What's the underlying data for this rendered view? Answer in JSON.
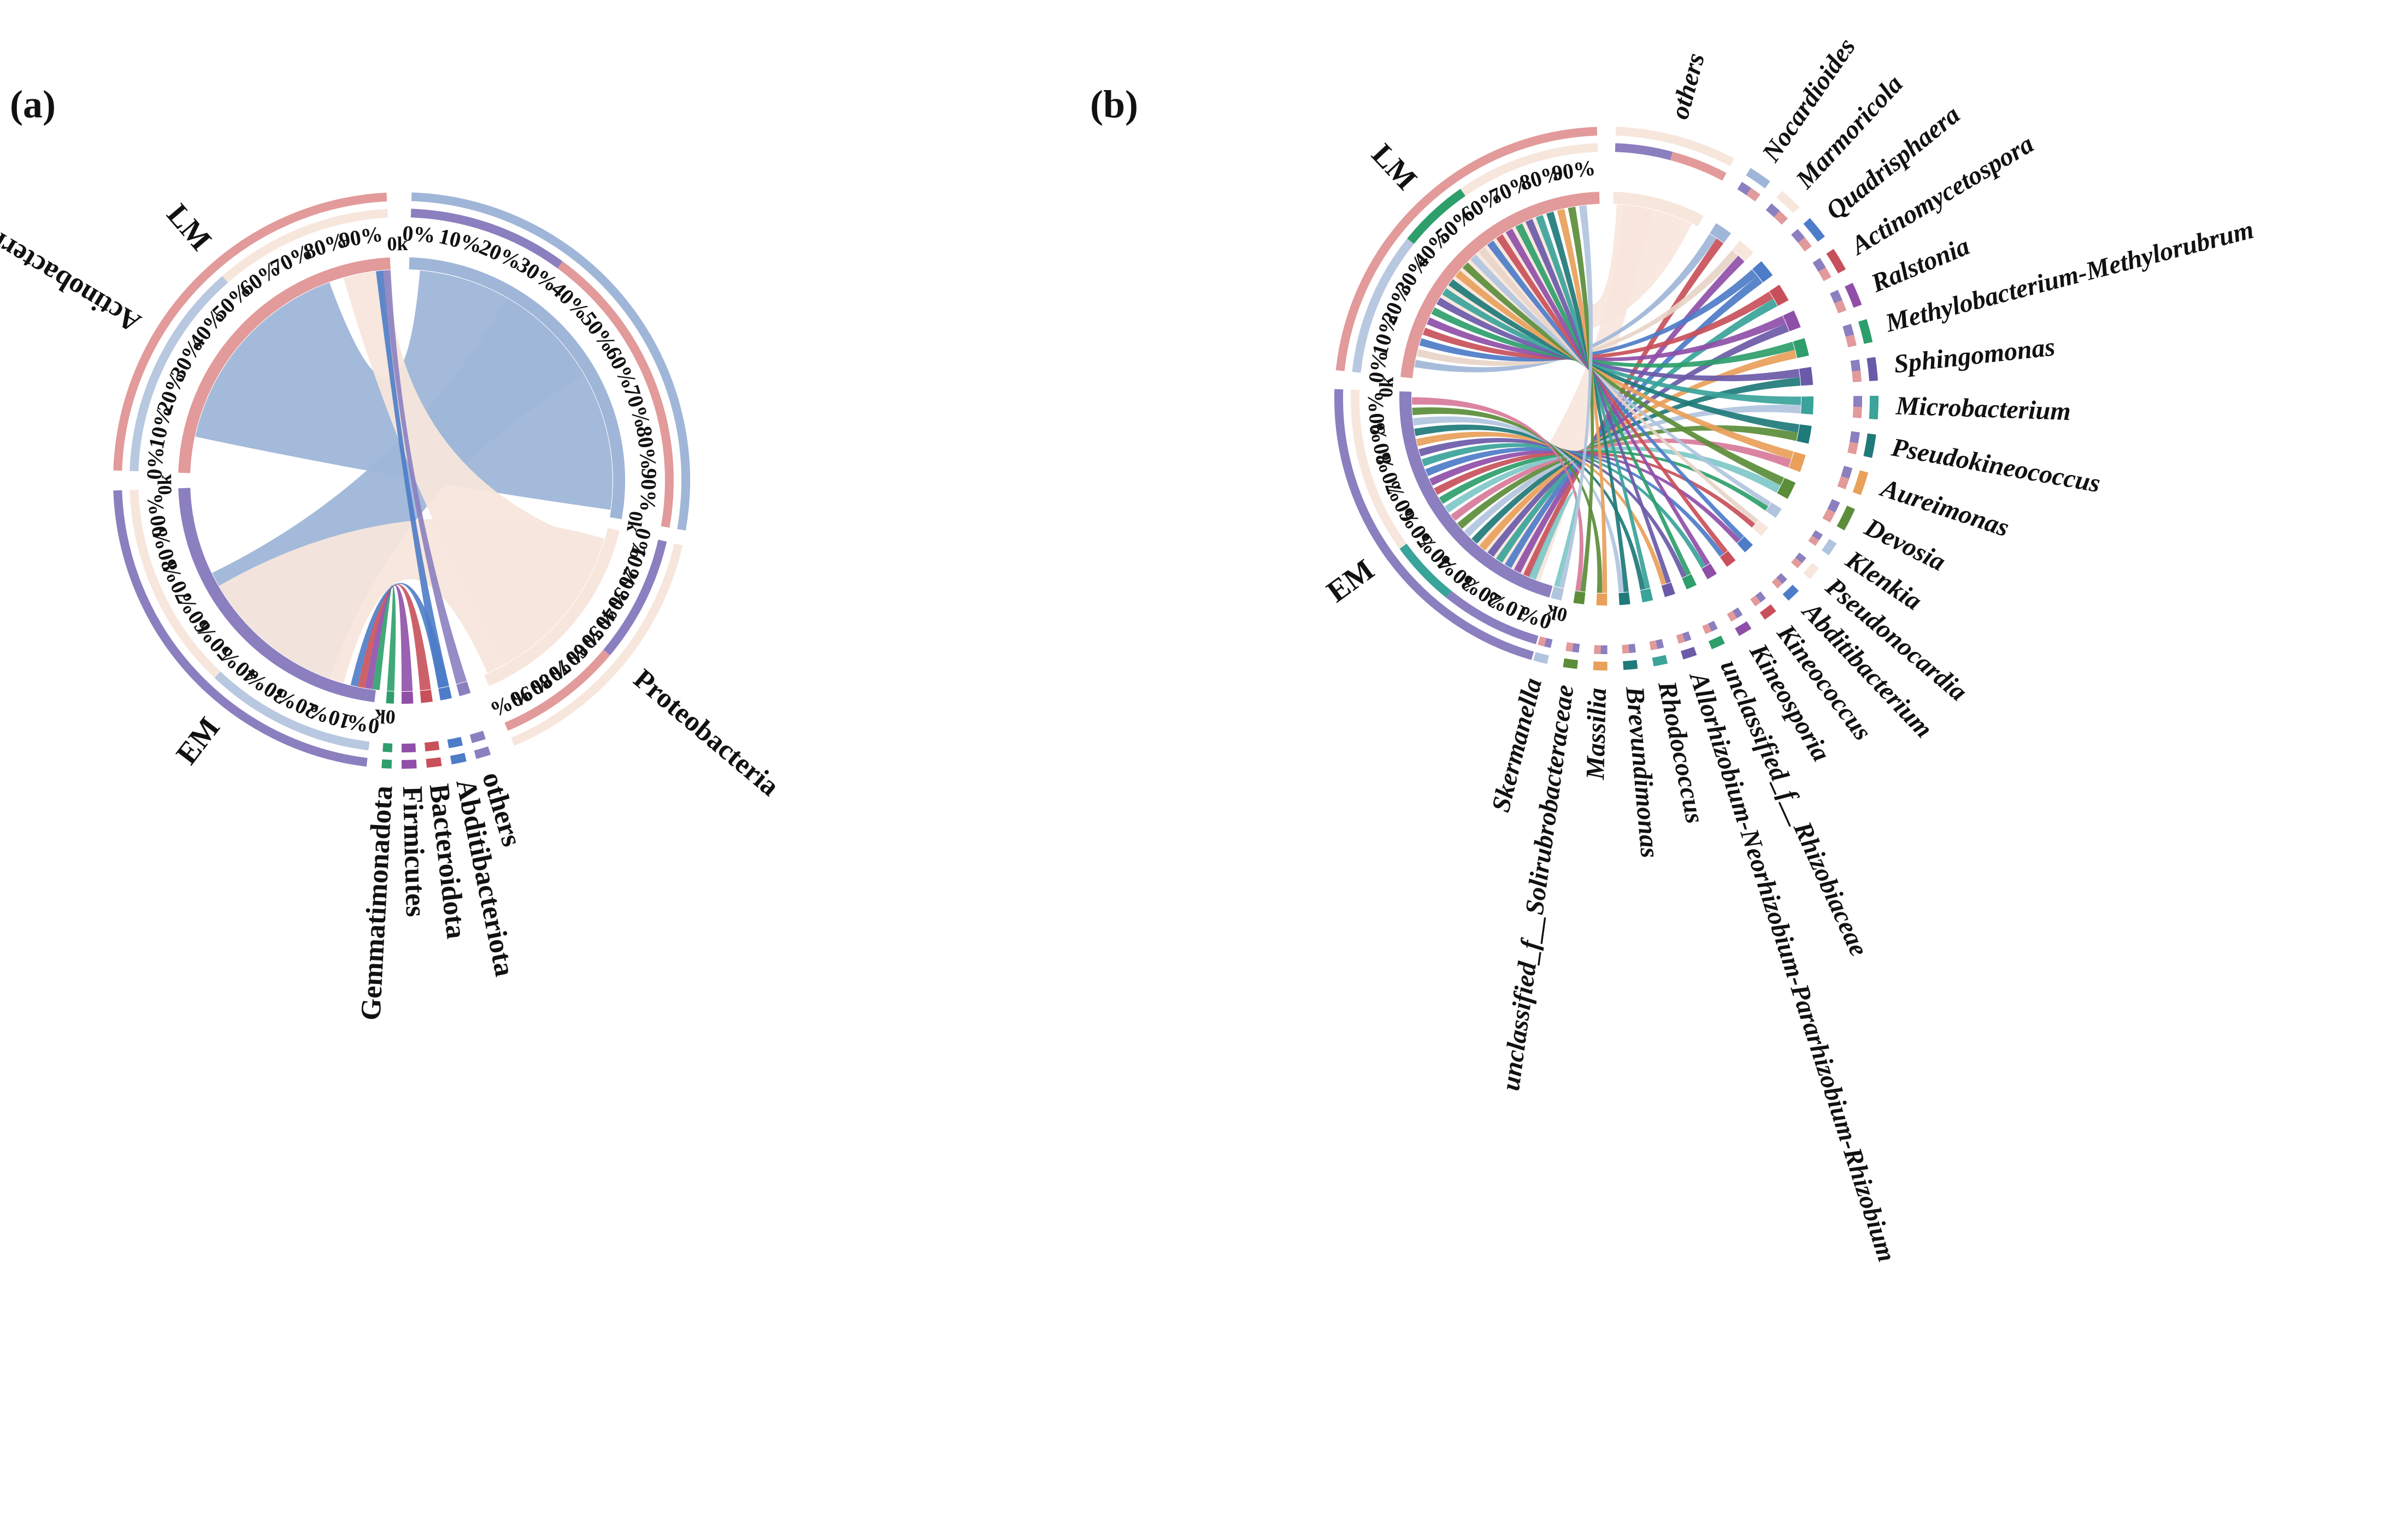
{
  "colors": {
    "EM": "#8b7fc0",
    "LM": "#e29a9a",
    "Actinobacteriota": "#9fb6d8",
    "Proteobacteria": "#f7e6dc",
    "link_palette": [
      "#2e9e6b",
      "#c8505a",
      "#8f4fa8",
      "#4d7cc8",
      "#3aa39a",
      "#6a5aa8",
      "#e8a05a",
      "#1f7a7a",
      "#b0c4de",
      "#5b8d3a",
      "#d87a9a",
      "#7ec8c8"
    ]
  },
  "panels": [
    {
      "label": "(a)",
      "groups": [
        {
          "name": "LM",
          "color": "#e29a9a"
        },
        {
          "name": "EM",
          "color": "#8b7fc0"
        }
      ],
      "taxa": [
        {
          "name": "Actinobacteriota",
          "color": "#9fb6d8"
        },
        {
          "name": "Proteobacteria",
          "color": "#f7e6dc"
        },
        {
          "name": "others",
          "color": "#8b7fc0"
        },
        {
          "name": "Abditibacteriota",
          "color": "#4d7cc8"
        },
        {
          "name": "Bacteroidota",
          "color": "#c8505a"
        },
        {
          "name": "Firmicutes",
          "color": "#8f4fa8"
        },
        {
          "name": "Gemmatimonadota",
          "color": "#2e9e6b"
        }
      ],
      "percent_ticks": [
        "0%",
        "10%",
        "20%",
        "30%",
        "40%",
        "50%",
        "60%",
        "70%",
        "80%",
        "90%"
      ],
      "k_tick": "0k"
    },
    {
      "label": "(b)",
      "groups": [
        {
          "name": "LM",
          "color": "#e29a9a"
        },
        {
          "name": "EM",
          "color": "#8b7fc0"
        }
      ],
      "taxa": [
        {
          "name": "others",
          "color": "#f7e6dc"
        },
        {
          "name": "Nocardioides",
          "color": "#9fb6d8"
        },
        {
          "name": "Marmoricola",
          "color": "#f7e6dc"
        },
        {
          "name": "Quadrisphaera",
          "color": "#4d7cc8"
        },
        {
          "name": "Actinomycetospora",
          "color": "#c8505a"
        },
        {
          "name": "Ralstonia",
          "color": "#8f4fa8"
        },
        {
          "name": "Methylobacterium-Methylorubrum",
          "color": "#2e9e6b"
        },
        {
          "name": "Sphingomonas",
          "color": "#6a5aa8"
        },
        {
          "name": "Microbacterium",
          "color": "#3aa39a"
        },
        {
          "name": "Pseudokineococcus",
          "color": "#1f7a7a"
        },
        {
          "name": "Aureimonas",
          "color": "#e8a05a"
        },
        {
          "name": "Devosia",
          "color": "#5b8d3a"
        },
        {
          "name": "Klenkia",
          "color": "#b0c4de"
        },
        {
          "name": "Pseudonocardia",
          "color": "#f7e6dc"
        },
        {
          "name": "Abditibacterium",
          "color": "#4d7cc8"
        },
        {
          "name": "Kineococcus",
          "color": "#c8505a"
        },
        {
          "name": "Kineosporia",
          "color": "#8f4fa8"
        },
        {
          "name": "unclassified_f__Rhizobiaceae",
          "color": "#2e9e6b"
        },
        {
          "name": "Allorhizobium-Neorhizobium-Pararhizobium-Rhizobium",
          "color": "#6a5aa8"
        },
        {
          "name": "Rhodococcus",
          "color": "#3aa39a"
        },
        {
          "name": "Brevundimonas",
          "color": "#1f7a7a"
        },
        {
          "name": "Massilia",
          "color": "#e8a05a"
        },
        {
          "name": "unclassified_f__Solirubrobacteraceae",
          "color": "#5b8d3a"
        },
        {
          "name": "Skermanella",
          "color": "#b0c4de"
        }
      ],
      "percent_ticks": [
        "0%",
        "10%",
        "20%",
        "30%",
        "40%",
        "50%",
        "60%",
        "70%",
        "80%",
        "90%"
      ],
      "k_tick": "0k"
    }
  ]
}
